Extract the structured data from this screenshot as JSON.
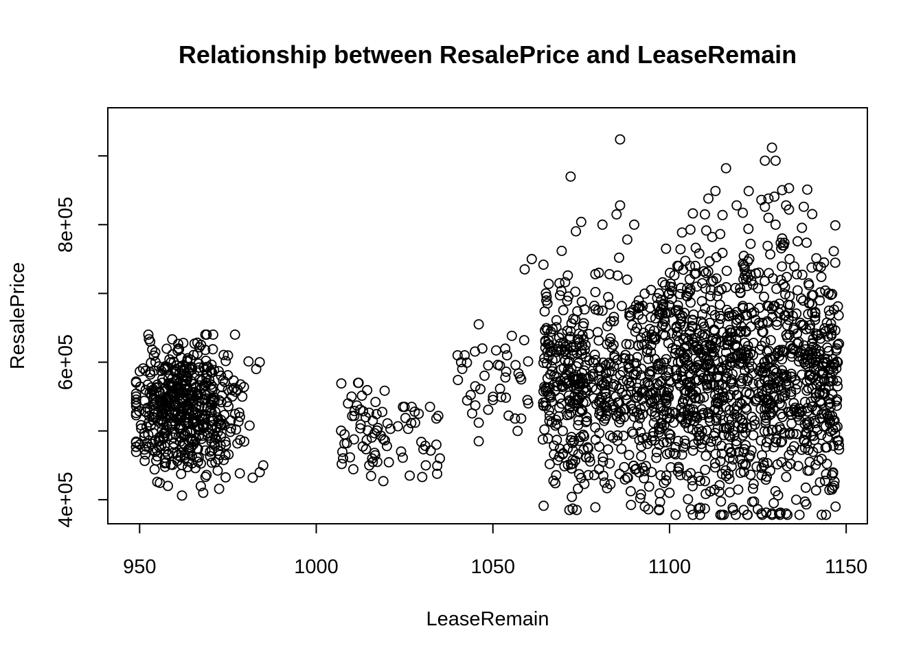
{
  "chart_data": {
    "type": "scatter",
    "title": "Relationship between ResalePrice and LeaseRemain",
    "xlabel": "LeaseRemain",
    "ylabel": "ResalePrice",
    "xlim": [
      941,
      1156
    ],
    "ylim": [
      365000,
      970000
    ],
    "x_ticks": [
      {
        "value": 950,
        "label": "950"
      },
      {
        "value": 1000,
        "label": "1000"
      },
      {
        "value": 1050,
        "label": "1050"
      },
      {
        "value": 1100,
        "label": "1100"
      },
      {
        "value": 1150,
        "label": "1150"
      }
    ],
    "y_ticks": [
      {
        "value": 400000,
        "label": "4e+05"
      },
      {
        "value": 500000,
        "label": ""
      },
      {
        "value": 600000,
        "label": "6e+05"
      },
      {
        "value": 700000,
        "label": ""
      },
      {
        "value": 800000,
        "label": "8e+05"
      },
      {
        "value": 900000,
        "label": ""
      }
    ],
    "grid": false,
    "marker": "open-circle",
    "color": "#000000",
    "clusters": [
      {
        "x_range": [
          949,
          985
        ],
        "y_center": 530000,
        "y_spread": 45000,
        "y_min": 405000,
        "y_max": 640000,
        "count": 520,
        "x_center": 963
      },
      {
        "x_range": [
          1007,
          1021
        ],
        "y_center": 505000,
        "y_spread": 35000,
        "y_min": 428000,
        "y_max": 570000,
        "count": 45
      },
      {
        "x_range": [
          1022,
          1036
        ],
        "y_center": 500000,
        "y_spread": 40000,
        "y_min": 435000,
        "y_max": 535000,
        "count": 15
      },
      {
        "x_range": [
          1040,
          1060
        ],
        "y_center": 570000,
        "y_spread": 40000,
        "y_min": 485000,
        "y_max": 655000,
        "count": 30
      },
      {
        "x_range": [
          1064,
          1097
        ],
        "y_center": 570000,
        "y_spread": 75000,
        "y_min": 385000,
        "y_max": 870000,
        "count": 520
      },
      {
        "x_range": [
          1097,
          1148
        ],
        "y_center": 580000,
        "y_spread": 95000,
        "y_min": 378000,
        "y_max": 912000,
        "count": 1100
      }
    ],
    "points": [
      [
        1086,
        924000
      ],
      [
        1129,
        912000
      ],
      [
        1127,
        893000
      ],
      [
        1130,
        893000
      ],
      [
        1116,
        882000
      ],
      [
        1072,
        870000
      ],
      [
        1139,
        851000
      ],
      [
        1113,
        849000
      ],
      [
        1111,
        838000
      ],
      [
        1126,
        836000
      ],
      [
        1128,
        838000
      ],
      [
        1086,
        828000
      ],
      [
        1119,
        828000
      ],
      [
        1127,
        826000
      ],
      [
        1133,
        828000
      ],
      [
        1138,
        826000
      ],
      [
        1085,
        815000
      ],
      [
        1110,
        815000
      ],
      [
        1115,
        814000
      ],
      [
        1128,
        810000
      ],
      [
        1075,
        804000
      ],
      [
        1081,
        800000
      ],
      [
        1090,
        800000
      ],
      [
        1130,
        800000
      ],
      [
        1099,
        765000
      ],
      [
        1134,
        750000
      ],
      [
        1061,
        750000
      ],
      [
        1059,
        735000
      ],
      [
        1080,
        730000
      ],
      [
        1083,
        728000
      ],
      [
        1088,
        720000
      ],
      [
        1065,
        700000
      ],
      [
        1097,
        700000
      ],
      [
        1145,
        700000
      ],
      [
        1046,
        655000
      ],
      [
        953,
        630000
      ],
      [
        961,
        620000
      ],
      [
        969,
        640000
      ],
      [
        977,
        640000
      ],
      [
        1040,
        610000
      ],
      [
        1042,
        610000
      ],
      [
        1047,
        620000
      ],
      [
        1054,
        610000
      ],
      [
        1041,
        600000
      ],
      [
        1012,
        570000
      ],
      [
        1052,
        595000
      ],
      [
        1010,
        550000
      ],
      [
        1045,
        565000
      ],
      [
        1058,
        575000
      ],
      [
        1060,
        540000
      ],
      [
        1050,
        545000
      ],
      [
        1025,
        535000
      ],
      [
        1027,
        535000
      ],
      [
        1029,
        525000
      ],
      [
        1034,
        518000
      ],
      [
        1046,
        512000
      ],
      [
        1058,
        518000
      ],
      [
        1057,
        500000
      ],
      [
        1028,
        512000
      ],
      [
        1026,
        503000
      ],
      [
        1016,
        515000
      ],
      [
        1021,
        503000
      ],
      [
        1034,
        480000
      ],
      [
        1035,
        460000
      ],
      [
        1030,
        433000
      ],
      [
        1031,
        450000
      ],
      [
        1019,
        427000
      ],
      [
        1024,
        470000
      ],
      [
        1046,
        485000
      ],
      [
        1015,
        450000
      ],
      [
        1016,
        455000
      ],
      [
        1020,
        478000
      ],
      [
        1008,
        495000
      ],
      [
        1009,
        540000
      ],
      [
        1014,
        520000
      ],
      [
        1097,
        386000
      ],
      [
        1100,
        410000
      ],
      [
        1106,
        386000
      ],
      [
        1110,
        387000
      ],
      [
        1118,
        385000
      ],
      [
        1121,
        385000
      ],
      [
        1122,
        378000
      ],
      [
        1126,
        380000
      ],
      [
        1129,
        380000
      ],
      [
        1131,
        380000
      ],
      [
        1133,
        380000
      ],
      [
        1147,
        390000
      ],
      [
        1148,
        473000
      ],
      [
        1146,
        522000
      ],
      [
        1079,
        389000
      ],
      [
        1093,
        390000
      ],
      [
        1094,
        386000
      ],
      [
        949,
        550000
      ],
      [
        949,
        540000
      ],
      [
        950,
        480000
      ],
      [
        952,
        482000
      ],
      [
        955,
        463000
      ],
      [
        958,
        420000
      ],
      [
        962,
        406000
      ],
      [
        968,
        410000
      ],
      [
        985,
        450000
      ],
      [
        984,
        440000
      ],
      [
        982,
        432000
      ],
      [
        984,
        600000
      ],
      [
        983,
        590000
      ]
    ]
  }
}
